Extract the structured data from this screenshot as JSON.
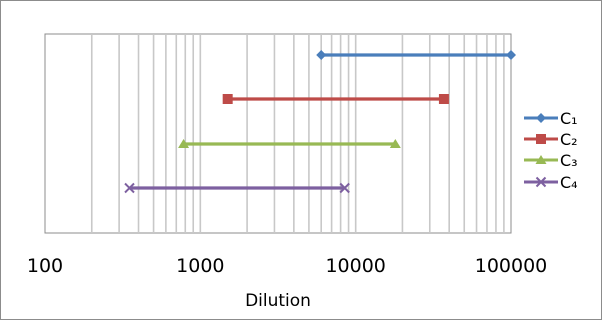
{
  "chart_data": {
    "type": "line",
    "title": "",
    "xlabel": "Dilution",
    "ylabel": "",
    "x_scale": "log",
    "xlim": [
      100,
      100000
    ],
    "x_ticks": [
      100,
      1000,
      10000,
      100000
    ],
    "x_tick_labels": [
      "100",
      "1000",
      "10000",
      "100000"
    ],
    "grid": "vertical",
    "legend_position": "right",
    "series": [
      {
        "name": "C₁",
        "marker": "diamond",
        "color": "#4a7ebb",
        "x": [
          6000,
          100000
        ]
      },
      {
        "name": "C₂",
        "marker": "square",
        "color": "#be4b48",
        "x": [
          1500,
          37000
        ]
      },
      {
        "name": "C₃",
        "marker": "triangle",
        "color": "#98b954",
        "x": [
          780,
          18000
        ]
      },
      {
        "name": "C₄",
        "marker": "x",
        "color": "#7d60a0",
        "x": [
          350,
          8500
        ]
      }
    ]
  }
}
